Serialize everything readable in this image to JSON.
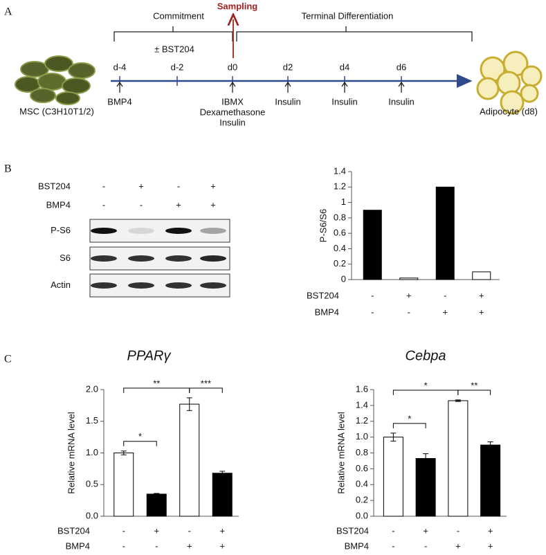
{
  "panel_a": {
    "label": "A",
    "commitment": "Commitment",
    "treatment": "± BST204",
    "sampling": "Sampling",
    "terminal": "Terminal Differentiation",
    "days": [
      "d-4",
      "d-2",
      "d0",
      "d2",
      "d4",
      "d6"
    ],
    "day_treatments": [
      [
        "BMP4"
      ],
      [],
      [
        "IBMX",
        "Dexamethasone",
        "Insulin"
      ],
      [
        "Insulin"
      ],
      [
        "Insulin"
      ],
      [
        "Insulin"
      ]
    ],
    "start_cell": "MSC (C3H10T1/2)",
    "end_cell": "Adipocyte (d8)"
  },
  "panel_b": {
    "label": "B",
    "conditions": [
      {
        "name": "BST204",
        "signs": [
          "-",
          "+",
          "-",
          "+"
        ]
      },
      {
        "name": "BMP4",
        "signs": [
          "-",
          "-",
          "+",
          "+"
        ]
      }
    ],
    "blots": [
      "P-S6",
      "S6",
      "Actin"
    ]
  },
  "panel_c": {
    "label": "C"
  },
  "chart_data": [
    {
      "type": "bar",
      "y_label": "P-S6/S6",
      "categories": [
        null,
        null,
        null,
        null
      ],
      "values": [
        0.9,
        0.02,
        1.2,
        0.1
      ],
      "colors": [
        "#000000",
        "#ffffff",
        "#000000",
        "#ffffff"
      ],
      "ylim": [
        0,
        1.4
      ],
      "yticks": [
        0,
        0.2,
        0.4,
        0.6,
        0.8,
        1,
        1.2,
        1.4
      ],
      "conditions": [
        {
          "name": "BST204",
          "signs": [
            "-",
            "+",
            "-",
            "+"
          ]
        },
        {
          "name": "BMP4",
          "signs": [
            "-",
            "-",
            "+",
            "+"
          ]
        }
      ]
    },
    {
      "type": "bar",
      "title": "PPARγ",
      "y_label": "Relative mRNA level",
      "categories": [
        null,
        null,
        null,
        null
      ],
      "values": [
        1.0,
        0.35,
        1.77,
        0.68
      ],
      "errors": [
        0.03,
        0.01,
        0.1,
        0.03
      ],
      "colors": [
        "#ffffff",
        "#000000",
        "#ffffff",
        "#000000"
      ],
      "ylim": [
        0,
        2.0
      ],
      "yticks": [
        {
          "value": 0,
          "label": "0.0"
        },
        0.5,
        {
          "value": 1.0,
          "label": "1.0"
        },
        1.5,
        {
          "value": 2.0,
          "label": "2.0"
        }
      ],
      "annotations": [
        {
          "from": 0,
          "to": 1,
          "label": "*"
        },
        {
          "from": 0,
          "to": 2,
          "label": "**"
        },
        {
          "from": 2,
          "to": 3,
          "label": "***"
        }
      ],
      "conditions": [
        {
          "name": "BST204",
          "signs": [
            "-",
            "+",
            "-",
            "+"
          ]
        },
        {
          "name": "BMP4",
          "signs": [
            "-",
            "-",
            "+",
            "+"
          ]
        }
      ]
    },
    {
      "type": "bar",
      "title": "Cebpa",
      "y_label": "Relative mRNA level",
      "categories": [
        null,
        null,
        null,
        null
      ],
      "values": [
        1.0,
        0.73,
        1.46,
        0.9
      ],
      "errors": [
        0.05,
        0.06,
        0.01,
        0.04
      ],
      "colors": [
        "#ffffff",
        "#000000",
        "#ffffff",
        "#000000"
      ],
      "ylim": [
        0,
        1.6
      ],
      "yticks": [
        {
          "value": 0,
          "label": "0.0"
        },
        0.2,
        0.4,
        0.6,
        0.8,
        {
          "value": 1.0,
          "label": "1.0"
        },
        1.2,
        1.4,
        1.6
      ],
      "annotations": [
        {
          "from": 0,
          "to": 1,
          "label": "*"
        },
        {
          "from": 0,
          "to": 2,
          "label": "*"
        },
        {
          "from": 2,
          "to": 3,
          "label": "**"
        }
      ],
      "conditions": [
        {
          "name": "BST204",
          "signs": [
            "-",
            "+",
            "-",
            "+"
          ]
        },
        {
          "name": "BMP4",
          "signs": [
            "-",
            "-",
            "+",
            "+"
          ]
        }
      ]
    }
  ]
}
